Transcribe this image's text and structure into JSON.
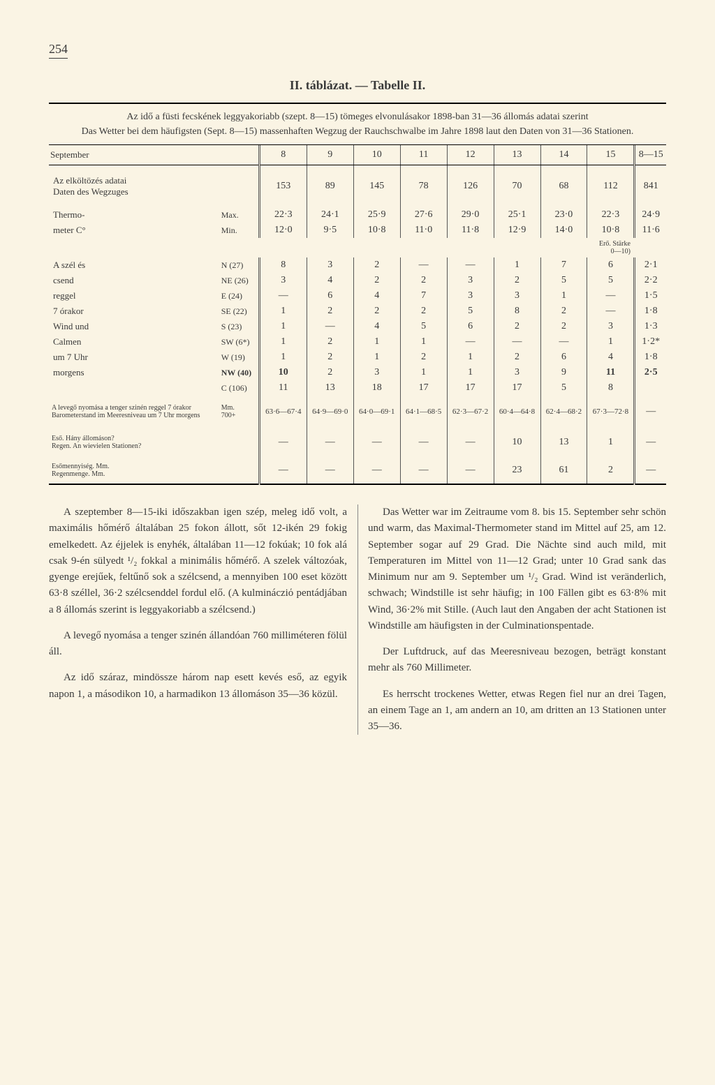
{
  "page_number": "254",
  "table_title": "II. táblázat. — Tabelle II.",
  "caption_hu": "Az idő a füsti fecskének leggyakoriabb (szept. 8—15) tömeges elvonulásakor 1898-ban 31—36 állomás adatai szerint",
  "caption_de": "Das Wetter bei dem häufigsten (Sept. 8—15) massenhaften Wegzug der Rauchschwalbe im Jahre 1898 laut den Daten von 31—36 Stationen.",
  "col_headers": [
    "September",
    "8",
    "9",
    "10",
    "11",
    "12",
    "13",
    "14",
    "15",
    "8—15"
  ],
  "rows": [
    {
      "label": "Az elköltözés adatai\nDaten des Wegzuges",
      "sub": "",
      "vals": [
        "153",
        "89",
        "145",
        "78",
        "126",
        "70",
        "68",
        "112",
        "841"
      ]
    },
    {
      "label": "Thermo-",
      "sub": "Max.",
      "vals": [
        "22·3",
        "24·1",
        "25·9",
        "27·6",
        "29·0",
        "25·1",
        "23·0",
        "22·3",
        "24·9"
      ]
    },
    {
      "label": "meter C°",
      "sub": "Min.",
      "vals": [
        "12·0",
        "9·5",
        "10·8",
        "11·0",
        "11·8",
        "12·9",
        "14·0",
        "10·8",
        "11·6"
      ]
    }
  ],
  "strength_note": "Erő. Stärke\n0—10)",
  "wind_rows": [
    {
      "lbl1": "A szél és",
      "lbl2": "N (27)",
      "vals": [
        "8",
        "3",
        "2",
        "—",
        "—",
        "1",
        "7",
        "6",
        "2·1"
      ]
    },
    {
      "lbl1": "csend",
      "lbl2": "NE (26)",
      "vals": [
        "3",
        "4",
        "2",
        "2",
        "3",
        "2",
        "5",
        "5",
        "2·2"
      ]
    },
    {
      "lbl1": "reggel",
      "lbl2": "E (24)",
      "vals": [
        "—",
        "6",
        "4",
        "7",
        "3",
        "3",
        "1",
        "—",
        "1·5"
      ]
    },
    {
      "lbl1": "7 órakor",
      "lbl2": "SE (22)",
      "vals": [
        "1",
        "2",
        "2",
        "2",
        "5",
        "8",
        "2",
        "—",
        "1·8"
      ]
    },
    {
      "lbl1": "Wind und",
      "lbl2": "S (23)",
      "vals": [
        "1",
        "—",
        "4",
        "5",
        "6",
        "2",
        "2",
        "3",
        "1·3"
      ]
    },
    {
      "lbl1": "Calmen",
      "lbl2": "SW (6*)",
      "vals": [
        "1",
        "2",
        "1",
        "1",
        "—",
        "—",
        "—",
        "1",
        "1·2*"
      ]
    },
    {
      "lbl1": "um 7 Uhr",
      "lbl2": "W (19)",
      "vals": [
        "1",
        "2",
        "1",
        "2",
        "1",
        "2",
        "6",
        "4",
        "1·8"
      ]
    },
    {
      "lbl1": "morgens",
      "lbl2": "NW (40)",
      "vals": [
        "10",
        "2",
        "3",
        "1",
        "1",
        "3",
        "9",
        "11",
        "2·5"
      ],
      "bold": true
    },
    {
      "lbl1": "",
      "lbl2": "C (106)",
      "vals": [
        "11",
        "13",
        "18",
        "17",
        "17",
        "17",
        "5",
        "8",
        ""
      ]
    }
  ],
  "baro_label": "A levegő nyomása a tenger szinén reggel 7 órakor\nBarometerstand im Meeresniveau um 7 Uhr morgens",
  "baro_unit": "Mm.\n700+",
  "baro_vals": [
    "63·6—67·4",
    "64·9—69·0",
    "64·0—69·1",
    "64·1—68·5",
    "62·3—67·2",
    "60·4—64·8",
    "62·4—68·2",
    "67·3—72·8",
    "—"
  ],
  "rain_stations_label": "Eső. Hány állomáson?\nRegen. An wievielen Stationen?",
  "rain_stations_vals": [
    "—",
    "—",
    "—",
    "—",
    "—",
    "10",
    "13",
    "1",
    "—"
  ],
  "rain_amount_label": "Esőmennyiség. Mm.\nRegenmenge. Mm.",
  "rain_amount_vals": [
    "—",
    "—",
    "—",
    "—",
    "—",
    "23",
    "61",
    "2",
    "—"
  ],
  "para_hu_1": "A szeptember 8—15-iki időszakban igen szép, meleg idő volt, a maximális hőmérő általában 25 fokon állott, sőt 12-ikén 29 fokig emelkedett. Az éjjelek is enyhék, általában 11—12 fokúak; 10 fok alá csak 9-én sülyedt ¹/₂ fokkal a minimális hőmérő. A szelek változóak, gyenge erejűek, feltűnő sok a szélcsend, a mennyiben 100 eset között 63·8 széllel, 36·2 szélcsenddel fordul elő. (A kulminácziό pentádjában a 8 állomás szerint is leggyakoriabb a szélcsend.)",
  "para_hu_2": "A levegő nyomása a tenger szinén állandóan 760 milliméteren fölül áll.",
  "para_hu_3": "Az idő száraz, mindössze három nap esett kevés eső, az egyik napon 1, a másodikon 10, a harmadikon 13 állomáson 35—36 közül.",
  "para_de_1": "Das Wetter war im Zeitraume vom 8. bis 15. September sehr schön und warm, das Maximal-Thermometer stand im Mittel auf 25, am 12. September sogar auf 29 Grad. Die Nächte sind auch mild, mit Temperaturen im Mittel von 11—12 Grad; unter 10 Grad sank das Minimum nur am 9. September um ¹/₂ Grad. Wind ist veränderlich, schwach; Windstille ist sehr häufig; in 100 Fällen gibt es 63·8% mit Wind, 36·2% mit Stille. (Auch laut den Angaben der acht Stationen ist Windstille am häufigsten in der Culminationspentade.",
  "para_de_2": "Der Luftdruck, auf das Meeresniveau bezogen, beträgt konstant mehr als 760 Millimeter.",
  "para_de_3": "Es herrscht trockenes Wetter, etwas Regen fiel nur an drei Tagen, an einem Tage an 1, am andern an 10, am dritten an 13 Stationen unter 35—36."
}
